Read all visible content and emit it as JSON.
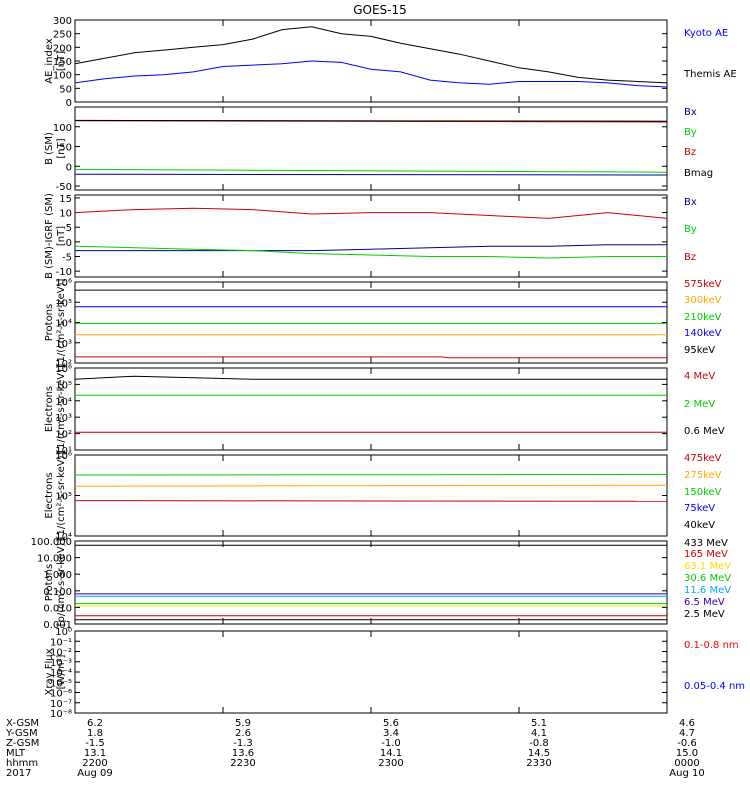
{
  "title": "GOES-15",
  "chart_data": [
    {
      "type": "line",
      "ylabel": "AE_index",
      "yunit": "[nT]",
      "ylim": [
        0,
        300
      ],
      "yticks": [
        "0",
        "50",
        "100",
        "150",
        "200",
        "250",
        "300"
      ],
      "series": [
        {
          "name": "Kyoto AE",
          "color": "#0000ff",
          "x": [
            0,
            0.05,
            0.1,
            0.15,
            0.2,
            0.25,
            0.3,
            0.35,
            0.4,
            0.45,
            0.5,
            0.55,
            0.6,
            0.65,
            0.7,
            0.75,
            0.8,
            0.85,
            0.9,
            0.95,
            1.0
          ],
          "y": [
            70,
            85,
            95,
            100,
            110,
            130,
            135,
            140,
            150,
            145,
            120,
            110,
            80,
            70,
            65,
            75,
            75,
            75,
            70,
            60,
            55
          ]
        },
        {
          "name": "Themis AE",
          "color": "#000000",
          "x": [
            0,
            0.05,
            0.1,
            0.15,
            0.2,
            0.25,
            0.3,
            0.35,
            0.4,
            0.45,
            0.5,
            0.55,
            0.6,
            0.65,
            0.7,
            0.75,
            0.8,
            0.85,
            0.9,
            0.95,
            1.0
          ],
          "y": [
            140,
            160,
            180,
            190,
            200,
            210,
            230,
            265,
            275,
            250,
            240,
            215,
            195,
            175,
            150,
            125,
            110,
            90,
            80,
            75,
            70
          ]
        }
      ]
    },
    {
      "type": "line",
      "ylabel": "B (SM)",
      "yunit": "[nT]",
      "ylim": [
        -60,
        150
      ],
      "yticks": [
        "-50",
        "0",
        "50",
        "100"
      ],
      "series": [
        {
          "name": "Bx",
          "color": "#00008b",
          "x": [
            0,
            1
          ],
          "y": [
            -20,
            -22
          ]
        },
        {
          "name": "By",
          "color": "#00cc00",
          "x": [
            0,
            1
          ],
          "y": [
            -8,
            -15
          ]
        },
        {
          "name": "Bz",
          "color": "#cc0000",
          "x": [
            0,
            1
          ],
          "y": [
            115,
            112
          ]
        },
        {
          "name": "Bmag",
          "color": "#000000",
          "x": [
            0,
            1
          ],
          "y": [
            116,
            114
          ]
        }
      ]
    },
    {
      "type": "line",
      "ylabel": "B (SM)-IGRF (SM)",
      "yunit": "[nT]",
      "ylim": [
        -12,
        16
      ],
      "yticks": [
        "-10",
        "-5",
        "0",
        "5",
        "10",
        "15"
      ],
      "series": [
        {
          "name": "Bx",
          "color": "#00008b",
          "x": [
            0,
            0.1,
            0.2,
            0.3,
            0.4,
            0.5,
            0.6,
            0.7,
            0.8,
            0.9,
            1.0
          ],
          "y": [
            -3,
            -3,
            -3,
            -3,
            -3,
            -2.5,
            -2,
            -1.5,
            -1.5,
            -1,
            -1
          ]
        },
        {
          "name": "By",
          "color": "#00cc00",
          "x": [
            0,
            0.1,
            0.2,
            0.3,
            0.4,
            0.5,
            0.6,
            0.7,
            0.8,
            0.9,
            1.0
          ],
          "y": [
            -1.5,
            -2,
            -2.5,
            -3,
            -4,
            -4.5,
            -5,
            -5,
            -5.5,
            -5,
            -5
          ]
        },
        {
          "name": "Bz",
          "color": "#cc0000",
          "x": [
            0,
            0.1,
            0.2,
            0.3,
            0.4,
            0.5,
            0.6,
            0.7,
            0.8,
            0.9,
            1.0
          ],
          "y": [
            10,
            11,
            11.5,
            11,
            9.5,
            10,
            10,
            9,
            8,
            10,
            8
          ]
        }
      ]
    },
    {
      "type": "line",
      "ylabel": "Protons",
      "yunit": "[1/(cm²-s-sr-keV)]",
      "yscale": "log",
      "ylim": [
        100,
        1000000
      ],
      "yticks": [
        "10²",
        "10³",
        "10⁴",
        "10⁵",
        "10⁶"
      ],
      "series": [
        {
          "name": "575keV",
          "color": "#cc0000",
          "x": [
            0,
            0.62,
            0.63,
            1
          ],
          "y": [
            200,
            200,
            180,
            180
          ]
        },
        {
          "name": "300keV",
          "color": "#ffaa00",
          "x": [
            0,
            1
          ],
          "y": [
            2500,
            2500
          ]
        },
        {
          "name": "210keV",
          "color": "#00cc00",
          "x": [
            0,
            1
          ],
          "y": [
            9000,
            9000
          ]
        },
        {
          "name": "140keV",
          "color": "#0000ff",
          "x": [
            0,
            1
          ],
          "y": [
            60000,
            60000
          ]
        },
        {
          "name": "95keV",
          "color": "#000000",
          "x": [
            0,
            1
          ],
          "y": [
            400000,
            400000
          ]
        }
      ]
    },
    {
      "type": "line",
      "ylabel": "Electrons",
      "yunit": "[1/(cm²-s-sr-keV)]",
      "yscale": "log",
      "ylim": [
        1,
        1000000
      ],
      "yticks": [
        "10¹",
        "10²",
        "10³",
        "10⁴",
        "10⁵",
        "10⁶"
      ],
      "series": [
        {
          "name": "4 MeV",
          "color": "#cc0000",
          "x": [
            0,
            1
          ],
          "y": [
            20,
            20
          ]
        },
        {
          "name": "2 MeV",
          "color": "#00cc00",
          "x": [
            0,
            1
          ],
          "y": [
            10000,
            10000
          ]
        },
        {
          "name": "0.6 MeV",
          "color": "#000000",
          "x": [
            0,
            0.1,
            0.3,
            1
          ],
          "y": [
            150000,
            250000,
            150000,
            150000
          ]
        }
      ]
    },
    {
      "type": "line",
      "ylabel": "Electrons",
      "yunit": "[1/(cm²-s-sr-keV)]",
      "yscale": "log",
      "ylim": [
        10000,
        1000000
      ],
      "yticks": [
        "10⁴",
        "10⁵",
        "10⁶"
      ],
      "series": [
        {
          "name": "475keV",
          "color": "#cc0000",
          "x": [
            0,
            1
          ],
          "y": [
            75000,
            72000
          ]
        },
        {
          "name": "275keV",
          "color": "#ffaa00",
          "x": [
            0,
            1
          ],
          "y": [
            170000,
            180000
          ]
        },
        {
          "name": "150keV",
          "color": "#00cc00",
          "x": [
            0,
            1
          ],
          "y": [
            320000,
            330000
          ]
        },
        {
          "name": "75keV",
          "color": "#0000ff",
          "x": [
            0,
            1
          ],
          "y": [
            null,
            null
          ]
        },
        {
          "name": "40keV",
          "color": "#000000",
          "x": [
            0,
            1
          ],
          "y": [
            null,
            null
          ]
        }
      ]
    },
    {
      "type": "line",
      "ylabel": "Protons",
      "yunit": "[p/(cm²-s-sr-keV)]",
      "yscale": "log",
      "ylim": [
        0.001,
        1000
      ],
      "yticks": [
        "0.001",
        "0.010",
        "0.100",
        "1.000",
        "10.000",
        "100.000"
      ],
      "series": [
        {
          "name": "433 MeV",
          "color": "#000000",
          "x": [
            0,
            1
          ],
          "y": [
            500,
            500
          ]
        },
        {
          "name": "165 MeV",
          "color": "#cc0000",
          "x": [
            0,
            1
          ],
          "y": [
            0.004,
            0.004
          ]
        },
        {
          "name": "63.1 MeV",
          "color": "#ffdd00",
          "x": [
            0,
            1
          ],
          "y": [
            0.02,
            0.02
          ]
        },
        {
          "name": "30.6 MeV",
          "color": "#00cc00",
          "x": [
            0,
            1
          ],
          "y": [
            0.03,
            0.03
          ]
        },
        {
          "name": "11.6 MeV",
          "color": "#00aaff",
          "x": [
            0,
            1
          ],
          "y": [
            0.1,
            0.1
          ]
        },
        {
          "name": "6.5 MeV",
          "color": "#3300aa",
          "x": [
            0,
            1
          ],
          "y": [
            0.15,
            0.15
          ]
        },
        {
          "name": "2.5 MeV",
          "color": "#000000",
          "x": [
            0,
            1
          ],
          "y": [
            0.002,
            0.002
          ]
        }
      ]
    },
    {
      "type": "line",
      "ylabel": "Xray Flux",
      "yunit": "[W/m²]",
      "yscale": "log",
      "ylim": [
        1e-08,
        1
      ],
      "yticks": [
        "10⁻⁸",
        "10⁻⁷",
        "10⁻⁶",
        "10⁻⁵",
        "10⁻⁴",
        "10⁻³",
        "10⁻²",
        "10⁻¹",
        "10⁰"
      ],
      "series": [
        {
          "name": "0.1-0.8 nm",
          "color": "#ff0000",
          "x": [],
          "y": []
        },
        {
          "name": "0.05-0.4 nm",
          "color": "#0000ff",
          "x": [],
          "y": []
        }
      ]
    }
  ],
  "footer": {
    "row_labels": [
      "X-GSM",
      "Y-GSM",
      "Z-GSM",
      "MLT",
      "hhmm",
      "2017"
    ],
    "columns": [
      [
        "6.2",
        "1.8",
        "-1.5",
        "13.1",
        "2200",
        "Aug 09"
      ],
      [
        "5.9",
        "2.6",
        "-1.3",
        "13.6",
        "2230",
        ""
      ],
      [
        "5.6",
        "3.4",
        "-1.0",
        "14.1",
        "2300",
        ""
      ],
      [
        "5.1",
        "4.1",
        "-0.8",
        "14.5",
        "2330",
        ""
      ],
      [
        "4.6",
        "4.7",
        "-0.6",
        "15.0",
        "0000",
        "Aug 10"
      ]
    ]
  }
}
